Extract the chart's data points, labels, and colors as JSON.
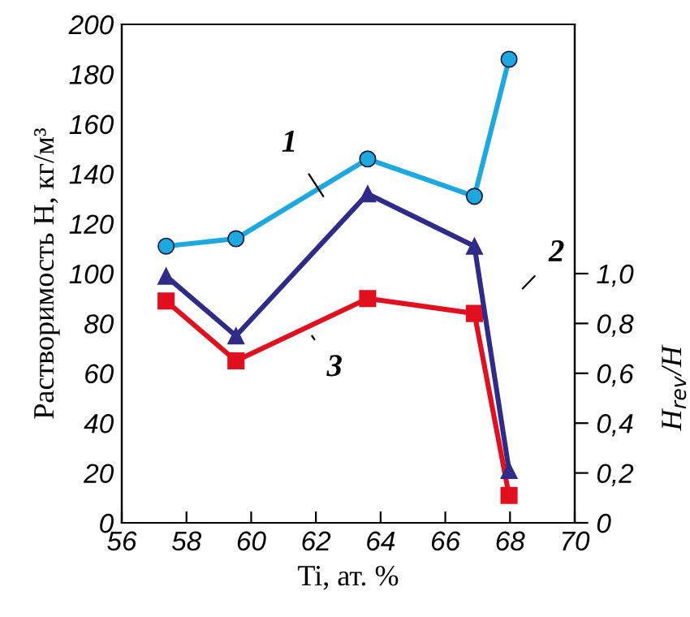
{
  "chart_data": {
    "type": "line",
    "xlabel": "Ti, ат. %",
    "ylabel": "Растворимость H, кг/м³",
    "y2label": "H$_{rev}$/H",
    "xlim": [
      56,
      70
    ],
    "xticks": [
      56,
      58,
      60,
      62,
      64,
      66,
      68,
      70
    ],
    "ylim": [
      0,
      200
    ],
    "yticks": [
      0,
      20,
      40,
      60,
      80,
      100,
      120,
      140,
      160,
      180,
      200
    ],
    "y2lim": [
      0,
      2
    ],
    "y2ticks": [
      {
        "value": 0,
        "label": "0"
      },
      {
        "value": 0.2,
        "label": "0,2"
      },
      {
        "value": 0.4,
        "label": "0,4"
      },
      {
        "value": 0.6,
        "label": "0,6"
      },
      {
        "value": 0.8,
        "label": "0,8"
      },
      {
        "value": 1.0,
        "label": "1,0"
      }
    ],
    "series": [
      {
        "color": "#1ea8e0",
        "marker": "circle",
        "x": [
          57.37,
          59.53,
          63.6,
          66.9,
          67.97
        ],
        "values": [
          111,
          114,
          146,
          131,
          186
        ]
      },
      {
        "color": "#302a88",
        "marker": "triangle",
        "x": [
          57.37,
          59.53,
          63.6,
          66.9,
          67.97
        ],
        "values": [
          99,
          75,
          132,
          111,
          21
        ]
      },
      {
        "color": "#e2101e",
        "marker": "square",
        "axis": "y2",
        "x": [
          57.37,
          59.53,
          63.6,
          66.9,
          67.97
        ],
        "values": [
          0.89,
          0.65,
          0.9,
          0.84,
          0.11
        ]
      }
    ],
    "annotations": [
      "1",
      "2",
      "3"
    ],
    "grid": false,
    "legend": false
  }
}
